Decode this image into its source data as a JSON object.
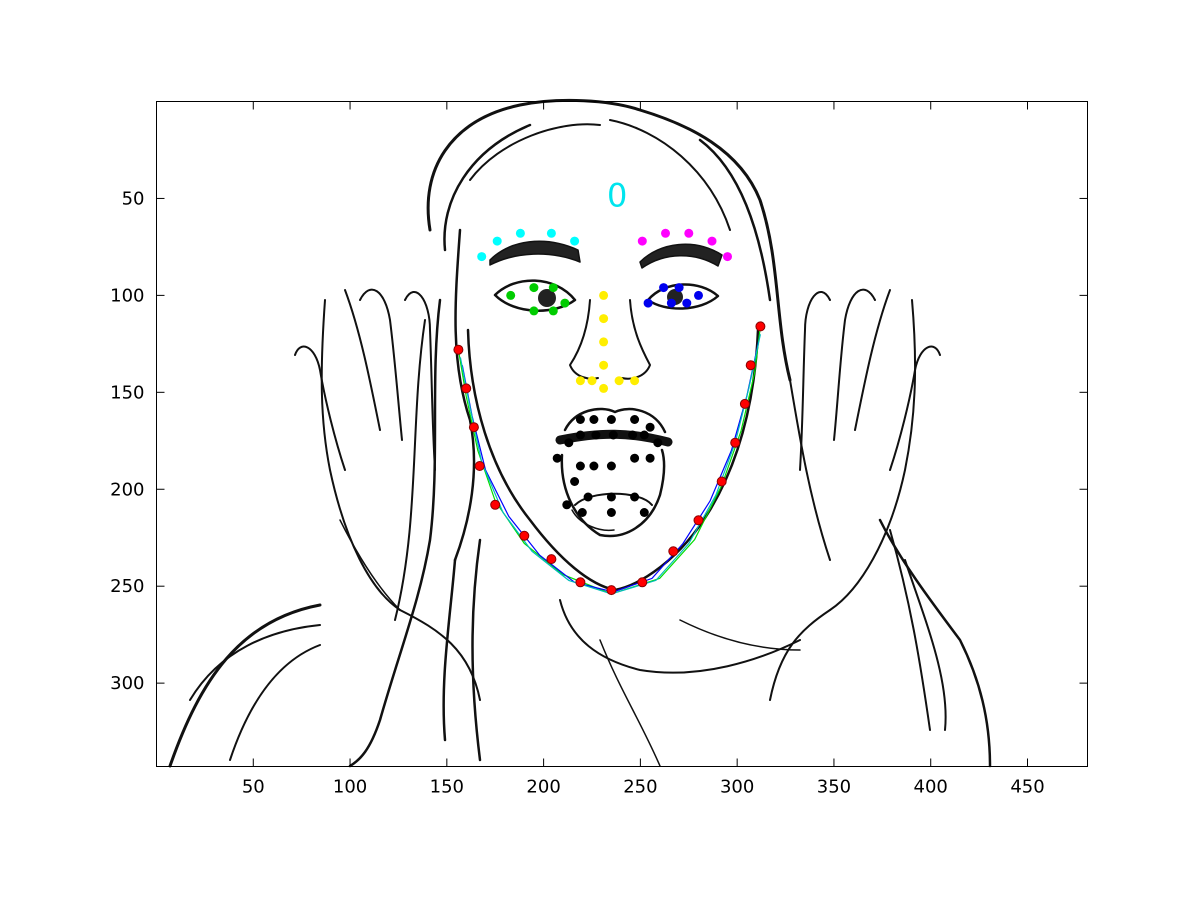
{
  "chart_data": {
    "type": "scatter",
    "title": "",
    "xlabel": "",
    "ylabel": "",
    "xlim": [
      0,
      481
    ],
    "ylim": [
      0,
      343
    ],
    "y_reversed": true,
    "xticks": [
      50,
      100,
      150,
      200,
      250,
      300,
      350,
      400,
      450
    ],
    "yticks": [
      50,
      100,
      150,
      200,
      250,
      300
    ],
    "annotations": [
      {
        "text": "0",
        "x": 238,
        "y": 48,
        "color": "#00e5ee"
      }
    ],
    "series": [
      {
        "color": "#ff0000",
        "points": [
          [
            156,
            128
          ],
          [
            160,
            148
          ],
          [
            164,
            168
          ],
          [
            167,
            188
          ],
          [
            175,
            208
          ],
          [
            190,
            224
          ],
          [
            204,
            236
          ],
          [
            219,
            248
          ],
          [
            235,
            252
          ],
          [
            251,
            248
          ],
          [
            267,
            232
          ],
          [
            280,
            216
          ],
          [
            292,
            196
          ],
          [
            299,
            176
          ],
          [
            304,
            156
          ],
          [
            307,
            136
          ],
          [
            312,
            116
          ]
        ]
      },
      {
        "color": "#00ffff",
        "points": [
          [
            168,
            80
          ],
          [
            176,
            72
          ],
          [
            188,
            68
          ],
          [
            204,
            68
          ],
          [
            216,
            72
          ]
        ]
      },
      {
        "color": "#ff00ff",
        "points": [
          [
            251,
            72
          ],
          [
            263,
            68
          ],
          [
            275,
            68
          ],
          [
            287,
            72
          ],
          [
            295,
            80
          ]
        ]
      },
      {
        "color": "#00cc00",
        "points": [
          [
            183,
            100
          ],
          [
            195,
            96
          ],
          [
            205,
            96
          ],
          [
            211,
            104
          ],
          [
            205,
            108
          ],
          [
            195,
            108
          ]
        ]
      },
      {
        "color": "#0000ee",
        "points": [
          [
            254,
            104
          ],
          [
            262,
            96
          ],
          [
            270,
            96
          ],
          [
            280,
            100
          ],
          [
            274,
            104
          ],
          [
            266,
            104
          ]
        ]
      },
      {
        "color": "#ffee00",
        "points": [
          [
            231,
            100
          ],
          [
            231,
            112
          ],
          [
            231,
            124
          ],
          [
            231,
            136
          ],
          [
            219,
            144
          ],
          [
            225,
            144
          ],
          [
            231,
            148
          ],
          [
            239,
            144
          ],
          [
            247,
            144
          ]
        ]
      },
      {
        "color": "#000000",
        "points": [
          [
            207,
            184
          ],
          [
            213,
            176
          ],
          [
            219,
            164
          ],
          [
            226,
            164
          ],
          [
            235,
            164
          ],
          [
            247,
            164
          ],
          [
            255,
            168
          ],
          [
            259,
            176
          ],
          [
            255,
            184
          ],
          [
            247,
            184
          ],
          [
            235,
            188
          ],
          [
            226,
            188
          ],
          [
            219,
            188
          ],
          [
            219,
            172
          ],
          [
            227,
            172
          ],
          [
            236,
            172
          ],
          [
            246,
            172
          ],
          [
            252,
            172
          ],
          [
            216,
            196
          ],
          [
            223,
            204
          ],
          [
            235,
            204
          ],
          [
            247,
            204
          ],
          [
            212,
            208
          ],
          [
            220,
            212
          ],
          [
            235,
            212
          ],
          [
            252,
            212
          ]
        ]
      }
    ],
    "curves": [
      {
        "color": "#00dd00",
        "points": [
          [
            156,
            128
          ],
          [
            160,
            152
          ],
          [
            166,
            180
          ],
          [
            175,
            206
          ],
          [
            190,
            228
          ],
          [
            210,
            244
          ],
          [
            235,
            254
          ],
          [
            260,
            246
          ],
          [
            278,
            226
          ],
          [
            292,
            198
          ],
          [
            302,
            170
          ],
          [
            309,
            140
          ],
          [
            312,
            116
          ]
        ]
      },
      {
        "color": "#0000ff",
        "points": [
          [
            158,
            136
          ],
          [
            163,
            162
          ],
          [
            170,
            190
          ],
          [
            182,
            214
          ],
          [
            198,
            234
          ],
          [
            216,
            248
          ],
          [
            236,
            253
          ],
          [
            256,
            246
          ],
          [
            272,
            228
          ],
          [
            286,
            206
          ],
          [
            297,
            180
          ],
          [
            305,
            152
          ],
          [
            311,
            124
          ]
        ]
      },
      {
        "color": "#00bbbb",
        "points": [
          [
            157,
            132
          ],
          [
            162,
            158
          ],
          [
            168,
            186
          ],
          [
            179,
            212
          ],
          [
            194,
            232
          ],
          [
            213,
            247
          ],
          [
            235,
            254
          ],
          [
            258,
            247
          ],
          [
            275,
            228
          ],
          [
            289,
            203
          ],
          [
            299,
            176
          ],
          [
            306,
            148
          ],
          [
            312,
            120
          ]
        ]
      }
    ]
  }
}
